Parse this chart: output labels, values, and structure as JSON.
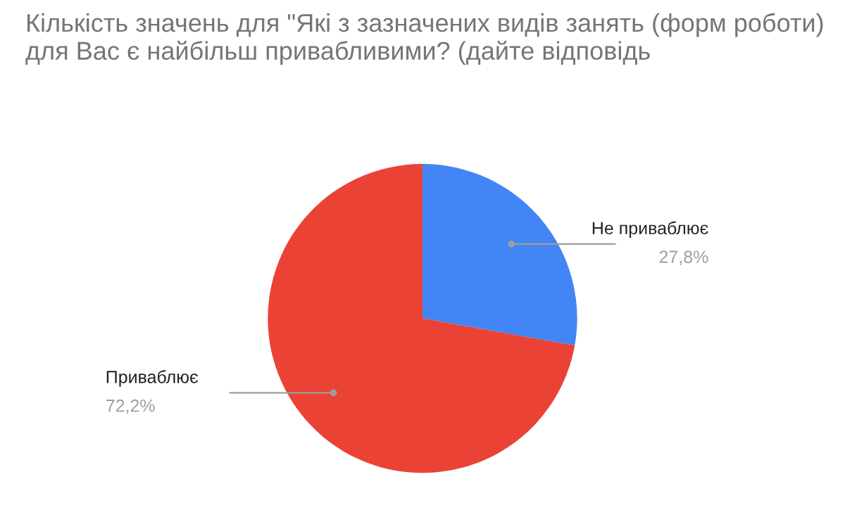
{
  "chart_data": {
    "type": "pie",
    "title": "Кількість значень для \"Які з зазначених видів занять (форм роботи) для Вас є найбільш привабливими? (дайте відповідь",
    "categories": [
      "Не приваблює",
      "Приваблює"
    ],
    "values": [
      27.8,
      72.2
    ],
    "colors": [
      "#4285f4",
      "#ea4335"
    ],
    "value_labels": [
      "27,8%",
      "72,2%"
    ],
    "legend": false
  }
}
